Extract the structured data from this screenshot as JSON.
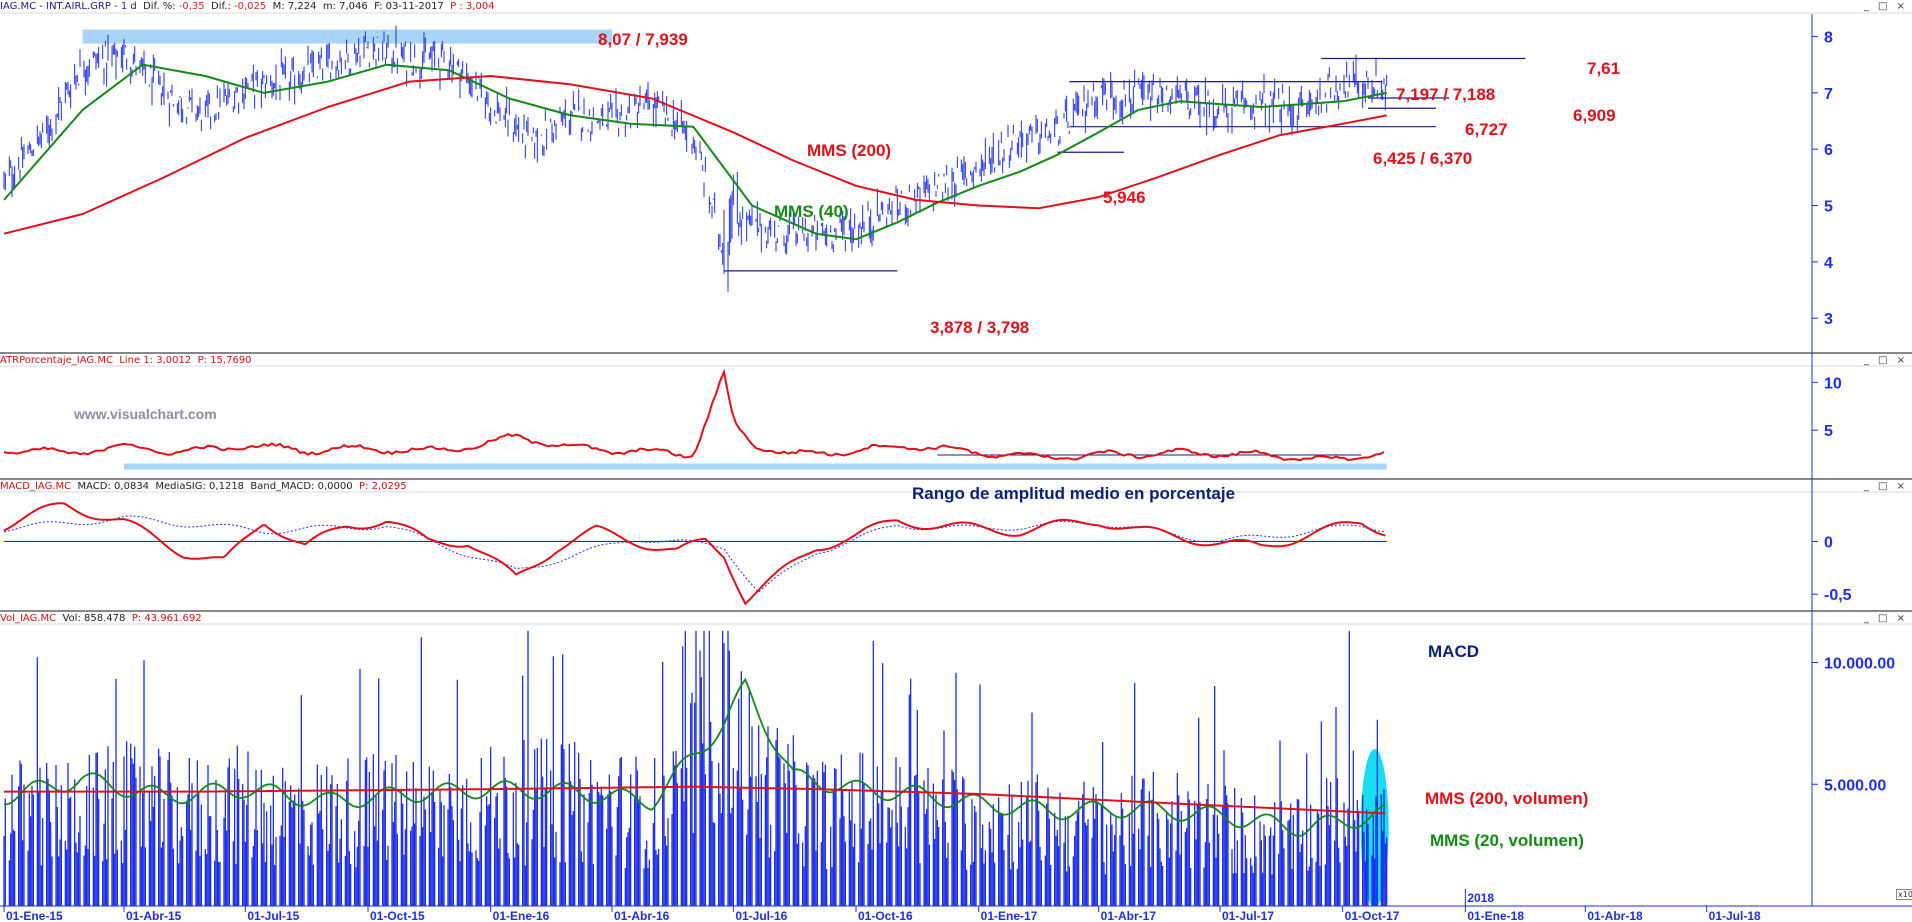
{
  "panels": {
    "price": {
      "header": {
        "symbol": "IAG.MC - INT.AIRL.GRP -  1 d",
        "dif_pct_label": "Dif. %:",
        "dif_pct": "-0,35",
        "dif_label": "Dif.:",
        "dif": "-0,025",
        "max_label": "M:",
        "max": "7,224",
        "min_label": "m:",
        "min": "7,046",
        "date_label": "F:",
        "date": "03-11-2017",
        "p_label": "P :",
        "p": "3,004"
      },
      "watermark": "www.visualchart.com",
      "annotations": {
        "top_zone": "8,07 / 7,939",
        "mms200": "MMS (200)",
        "mms40": "MMS (40)",
        "low_zone": "3,878 / 3,798",
        "r761": "7,61",
        "r7197": "7,197 / 7,188",
        "r6909": "6,909",
        "r6727": "6,727",
        "r6425": "6,425 / 6,370",
        "r5946": "5,946"
      }
    },
    "atr": {
      "header": {
        "name": "ATRPorcentaje_IAG.MC",
        "line_label": "Line 1:",
        "line": "3,0012",
        "p_label": "P:",
        "p": "15,7690"
      },
      "annotation": "Rango de amplitud medio en porcentaje"
    },
    "macd": {
      "header": {
        "name": "MACD_IAG.MC",
        "macd_label": "MACD:",
        "macd": "0,0834",
        "signal_label": "MediaSIG:",
        "signal": "0,1218",
        "band_label": "Band_MACD:",
        "band": "0,0000",
        "p_label": "P:",
        "p": "2,0295"
      },
      "annotation": "MACD"
    },
    "volume": {
      "header": {
        "name": "Vol_IAG.MC",
        "vol_label": "Vol:",
        "vol": "858.478",
        "p_label": "P:",
        "p": "43.961.692"
      },
      "annotations": {
        "mms200v": "MMS (200, volumen)",
        "mms20v": "MMS (20, volumen)"
      },
      "corner_label": "x10"
    }
  },
  "window_buttons": "_ □ ×",
  "colors": {
    "price": "#1e2ee6",
    "ma40": "#138a13",
    "ma200": "#e0101a",
    "axis": "#1e2ee6",
    "zone": "#a8d4f5",
    "atr": "#e0101a",
    "macd": "#e0101a",
    "macd_signal": "#1e2ee6",
    "volume": "#1e2ee6",
    "highlight": "#00d8f0"
  },
  "chart_data": [
    {
      "type": "line",
      "title": "IAG.MC - INT.AIRL.GRP daily price",
      "x_axis": {
        "type": "date",
        "start": "2015-01-01",
        "end": "2018-07-31",
        "ticks": [
          "01-Ene-15",
          "01-Abr-15",
          "01-Jul-15",
          "01-Oct-15",
          "01-Ene-16",
          "01-Abr-16",
          "01-Jul-16",
          "01-Oct-16",
          "01-Ene-17",
          "01-Abr-17",
          "01-Jul-17",
          "01-Oct-17",
          "01-Ene-18",
          "01-Abr-18",
          "01-Jul-18"
        ],
        "year_marker": "2018"
      },
      "y_axis": {
        "min": 2.4,
        "max": 8.4,
        "ticks": [
          "3",
          "4",
          "5",
          "6",
          "7",
          "8"
        ],
        "tick_values": [
          3,
          4,
          5,
          6,
          7,
          8
        ]
      },
      "series": [
        {
          "name": "IAG.MC",
          "style": "ohlc-bars",
          "x": [
            "2015-01-01",
            "2015-02-01",
            "2015-03-01",
            "2015-04-01",
            "2015-05-01",
            "2015-06-01",
            "2015-07-01",
            "2015-08-01",
            "2015-09-01",
            "2015-10-01",
            "2015-11-01",
            "2015-12-01",
            "2016-01-01",
            "2016-02-01",
            "2016-03-01",
            "2016-04-01",
            "2016-05-01",
            "2016-06-01",
            "2016-06-24",
            "2016-07-01",
            "2016-08-01",
            "2016-09-01",
            "2016-10-01",
            "2016-11-01",
            "2016-12-01",
            "2017-01-01",
            "2017-02-01",
            "2017-03-01",
            "2017-04-01",
            "2017-05-01",
            "2017-06-01",
            "2017-07-01",
            "2017-08-01",
            "2017-09-01",
            "2017-10-01",
            "2017-11-03"
          ],
          "y": [
            5.4,
            6.3,
            7.5,
            7.7,
            7.0,
            6.6,
            7.1,
            7.2,
            7.5,
            7.8,
            7.6,
            7.6,
            6.8,
            6.1,
            6.6,
            6.5,
            6.8,
            6.2,
            4.2,
            4.8,
            4.5,
            4.5,
            4.6,
            5.0,
            5.3,
            5.7,
            6.2,
            6.3,
            7.0,
            6.9,
            6.9,
            6.7,
            6.8,
            6.7,
            7.2,
            7.1
          ]
        },
        {
          "name": "MMS (40)",
          "x": [
            "2015-01-01",
            "2015-03-01",
            "2015-04-15",
            "2015-06-01",
            "2015-07-15",
            "2015-09-01",
            "2015-10-15",
            "2015-12-01",
            "2016-01-15",
            "2016-03-01",
            "2016-04-15",
            "2016-06-01",
            "2016-07-15",
            "2016-09-01",
            "2016-10-01",
            "2016-11-01",
            "2016-12-01",
            "2017-01-01",
            "2017-02-01",
            "2017-03-01",
            "2017-04-01",
            "2017-05-01",
            "2017-06-01",
            "2017-07-01",
            "2017-08-01",
            "2017-09-01",
            "2017-10-01",
            "2017-11-03"
          ],
          "y": [
            5.1,
            6.7,
            7.5,
            7.3,
            7.0,
            7.2,
            7.5,
            7.4,
            6.9,
            6.6,
            6.45,
            6.4,
            5.0,
            4.5,
            4.4,
            4.7,
            5.05,
            5.35,
            5.6,
            5.9,
            6.3,
            6.7,
            6.85,
            6.8,
            6.75,
            6.8,
            6.85,
            7.0
          ]
        },
        {
          "name": "MMS (200)",
          "x": [
            "2015-01-01",
            "2015-03-01",
            "2015-05-01",
            "2015-07-01",
            "2015-09-01",
            "2015-11-01",
            "2016-01-01",
            "2016-03-01",
            "2016-05-01",
            "2016-07-01",
            "2016-08-15",
            "2016-10-01",
            "2016-11-15",
            "2017-01-01",
            "2017-02-15",
            "2017-04-01",
            "2017-05-15",
            "2017-07-01",
            "2017-08-15",
            "2017-10-01",
            "2017-11-03"
          ],
          "y": [
            4.5,
            4.85,
            5.5,
            6.2,
            6.75,
            7.2,
            7.3,
            7.15,
            6.9,
            6.3,
            5.8,
            5.35,
            5.1,
            5.0,
            4.95,
            5.15,
            5.5,
            5.9,
            6.25,
            6.45,
            6.6
          ]
        }
      ],
      "levels": [
        {
          "label": "8,07 / 7,939",
          "y": 8.0,
          "from": "2015-03-01",
          "to": "2016-04-01"
        },
        {
          "label": "7,61",
          "y": 7.61,
          "from": "2017-09-15",
          "to": "2018-02-15"
        },
        {
          "label": "7,197 / 7,188",
          "y": 7.2,
          "from": "2017-03-10",
          "to": "2017-10-31"
        },
        {
          "label": "6,909",
          "y": 6.909,
          "from": "2017-10-20",
          "to": "2017-12-20"
        },
        {
          "label": "6,727",
          "y": 6.727,
          "from": "2017-10-20",
          "to": "2017-12-10"
        },
        {
          "label": "6,425 / 6,370",
          "y": 6.4,
          "from": "2017-03-10",
          "to": "2017-12-10"
        },
        {
          "label": "5,946",
          "y": 5.946,
          "from": "2017-03-01",
          "to": "2017-04-20"
        },
        {
          "label": "3,878 / 3,798",
          "y": 3.84,
          "from": "2016-06-24",
          "to": "2016-11-01"
        }
      ]
    },
    {
      "type": "line",
      "title": "ATRPorcentaje_IAG.MC",
      "y_axis": {
        "min": 0,
        "max": 11.5,
        "ticks": [
          "5",
          "10"
        ],
        "tick_values": [
          5,
          10
        ]
      },
      "series": [
        {
          "name": "Line 1",
          "x": [
            "2015-01-01",
            "2015-02-15",
            "2015-04-01",
            "2015-05-15",
            "2015-07-01",
            "2015-08-15",
            "2015-10-01",
            "2015-11-15",
            "2016-01-01",
            "2016-01-20",
            "2016-03-01",
            "2016-04-15",
            "2016-06-01",
            "2016-06-24",
            "2016-07-01",
            "2016-07-15",
            "2016-08-15",
            "2016-10-01",
            "2016-11-15",
            "2017-01-01",
            "2017-02-15",
            "2017-04-01",
            "2017-05-15",
            "2017-07-01",
            "2017-08-15",
            "2017-10-01",
            "2017-11-03"
          ],
          "y": [
            3.0,
            2.6,
            3.3,
            2.7,
            3.4,
            2.9,
            3.1,
            2.8,
            3.6,
            4.4,
            3.2,
            2.8,
            2.5,
            10.8,
            5.8,
            3.6,
            2.4,
            2.9,
            3.4,
            2.6,
            2.2,
            2.4,
            2.6,
            2.6,
            2.3,
            1.8,
            3.0
          ]
        }
      ],
      "levels": [
        {
          "y": 1.2,
          "from": "2015-04-01",
          "to": "2017-11-03",
          "style": "band"
        },
        {
          "y": 2.4,
          "from": "2016-12-01",
          "to": "2017-10-15",
          "style": "line"
        }
      ]
    },
    {
      "type": "line",
      "title": "MACD_IAG.MC",
      "y_axis": {
        "min": -0.65,
        "max": 0.45,
        "ticks": [
          "0",
          "-0,5"
        ],
        "tick_values": [
          0,
          -0.5
        ]
      },
      "series": [
        {
          "name": "MACD",
          "x": [
            "2015-01-01",
            "2015-02-15",
            "2015-04-01",
            "2015-05-15",
            "2015-06-15",
            "2015-07-15",
            "2015-08-15",
            "2015-09-15",
            "2015-10-15",
            "2015-11-15",
            "2015-12-15",
            "2016-01-20",
            "2016-02-20",
            "2016-03-20",
            "2016-04-20",
            "2016-05-20",
            "2016-06-10",
            "2016-06-24",
            "2016-07-10",
            "2016-08-01",
            "2016-09-01",
            "2016-10-01",
            "2016-11-01",
            "2016-12-01",
            "2017-01-01",
            "2017-02-01",
            "2017-03-01",
            "2017-04-01",
            "2017-05-01",
            "2017-06-01",
            "2017-07-01",
            "2017-08-01",
            "2017-09-01",
            "2017-10-15",
            "2017-11-03"
          ],
          "y": [
            0.15,
            0.35,
            0.18,
            -0.1,
            -0.2,
            0.2,
            -0.05,
            0.15,
            0.2,
            0.0,
            0.0,
            -0.35,
            -0.05,
            0.1,
            0.0,
            -0.1,
            0.0,
            -0.12,
            -0.55,
            -0.35,
            -0.05,
            0.05,
            0.2,
            0.15,
            0.12,
            0.1,
            0.15,
            0.2,
            0.1,
            0.05,
            -0.02,
            -0.05,
            0.05,
            0.18,
            0.1
          ]
        },
        {
          "name": "MediaSIG",
          "x": [
            "2015-01-01",
            "2015-04-01",
            "2015-07-15",
            "2015-10-15",
            "2016-01-20",
            "2016-04-20",
            "2016-06-24",
            "2016-07-20",
            "2016-09-01",
            "2016-11-01",
            "2017-01-01",
            "2017-04-01",
            "2017-07-01",
            "2017-10-15",
            "2017-11-03"
          ],
          "y": [
            0.12,
            0.22,
            0.1,
            0.15,
            -0.28,
            0.03,
            -0.05,
            -0.48,
            -0.1,
            0.15,
            0.12,
            0.18,
            0.0,
            0.15,
            0.12
          ]
        }
      ],
      "levels": [
        {
          "y": 0,
          "from": "2015-01-01",
          "to": "2017-11-03"
        }
      ]
    },
    {
      "type": "bar",
      "title": "Vol_IAG.MC",
      "y_axis": {
        "min": 0,
        "max": 11500000,
        "ticks": [
          "5.000.00",
          "10.000.00"
        ],
        "tick_values": [
          5000000,
          10000000
        ]
      },
      "series": [
        {
          "name": "Vol",
          "x": [
            "2015-01-01",
            "2015-02-15",
            "2015-04-01",
            "2015-05-15",
            "2015-07-01",
            "2015-08-15",
            "2015-10-01",
            "2015-11-15",
            "2016-01-01",
            "2016-02-15",
            "2016-04-01",
            "2016-05-15",
            "2016-06-24",
            "2016-07-15",
            "2016-09-01",
            "2016-10-15",
            "2016-12-01",
            "2017-01-15",
            "2017-03-01",
            "2017-04-15",
            "2017-06-01",
            "2017-07-15",
            "2017-09-01",
            "2017-10-15",
            "2017-11-03"
          ],
          "y": [
            4300000,
            4100000,
            4700000,
            4300000,
            4600000,
            4200000,
            4400000,
            4300000,
            4600000,
            4800000,
            4500000,
            4200000,
            9800000,
            6000000,
            4200000,
            4600000,
            4000000,
            4000000,
            3700000,
            3600000,
            4000000,
            3400000,
            3000000,
            4800000,
            3800000
          ]
        },
        {
          "name": "MMS (20, volumen)",
          "x": [
            "2015-01-01",
            "2015-03-01",
            "2015-05-01",
            "2015-07-01",
            "2015-09-01",
            "2015-11-01",
            "2016-01-01",
            "2016-03-01",
            "2016-05-01",
            "2016-06-24",
            "2016-07-10",
            "2016-08-15",
            "2016-10-01",
            "2016-11-15",
            "2017-01-01",
            "2017-03-01",
            "2017-05-01",
            "2017-07-01",
            "2017-09-01",
            "2017-10-15",
            "2017-11-03"
          ],
          "y": [
            4500000,
            5200000,
            4500000,
            4800000,
            4300000,
            4600000,
            4800000,
            4700000,
            4300000,
            7500000,
            9000000,
            5300000,
            4800000,
            4600000,
            4200000,
            3900000,
            4000000,
            3700000,
            3200000,
            3600000,
            3800000
          ]
        },
        {
          "name": "MMS (200, volumen)",
          "x": [
            "2015-01-01",
            "2015-06-01",
            "2016-01-01",
            "2016-06-01",
            "2016-09-01",
            "2017-01-01",
            "2017-06-01",
            "2017-11-03"
          ],
          "y": [
            4700000,
            4700000,
            4800000,
            4900000,
            4800000,
            4600000,
            4200000,
            3800000
          ]
        }
      ]
    }
  ]
}
